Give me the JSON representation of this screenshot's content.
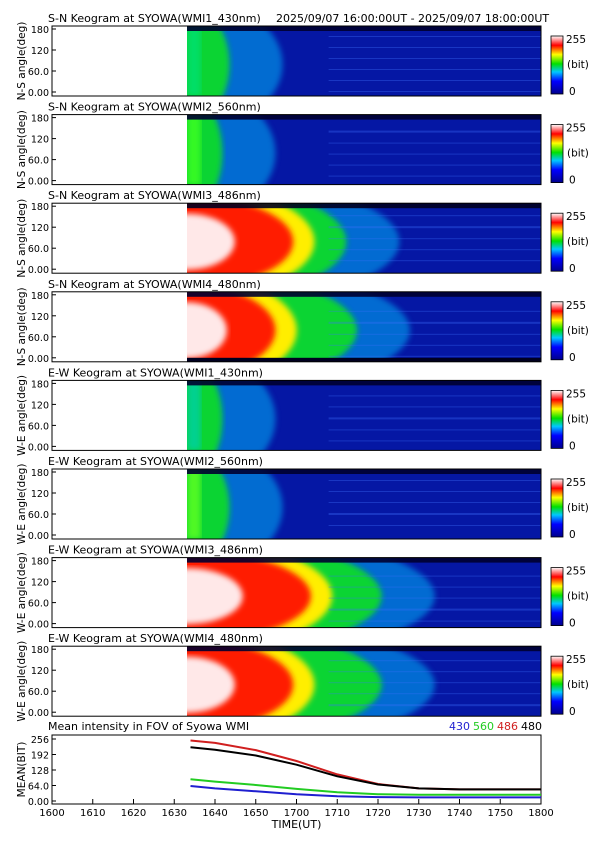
{
  "header": {
    "title_prefix": "S-N Keogram at SYOWA(WMI1_430nm)",
    "time_range": "2025/09/07 16:00:00UT - 2025/09/07 18:00:00UT"
  },
  "colorbar": {
    "max_label": "255",
    "unit_label": "(bit)",
    "min_label": "0"
  },
  "keogram_panels": [
    {
      "title": "S-N Keogram at SYOWA(WMI1_430nm)",
      "ylabel": "N-S angle(deg)",
      "ticks": [
        "180",
        "120",
        "60.0",
        "0.00"
      ]
    },
    {
      "title": "S-N Keogram at SYOWA(WMI2_560nm)",
      "ylabel": "N-S angle(deg)",
      "ticks": [
        "180",
        "120",
        "60.0",
        "0.00"
      ]
    },
    {
      "title": "S-N Keogram at SYOWA(WMI3_486nm)",
      "ylabel": "N-S angle(deg)",
      "ticks": [
        "180",
        "120",
        "60.0",
        "0.00"
      ]
    },
    {
      "title": "S-N Keogram at SYOWA(WMI4_480nm)",
      "ylabel": "N-S angle(deg)",
      "ticks": [
        "180",
        "120",
        "60.0",
        "0.00"
      ]
    },
    {
      "title": "E-W Keogram at SYOWA(WMI1_430nm)",
      "ylabel": "W-E angle(deg)",
      "ticks": [
        "180",
        "120",
        "60.0",
        "0.00"
      ]
    },
    {
      "title": "E-W Keogram at SYOWA(WMI2_560nm)",
      "ylabel": "W-E angle(deg)",
      "ticks": [
        "180",
        "120",
        "60.0",
        "0.00"
      ]
    },
    {
      "title": "E-W Keogram at SYOWA(WMI3_486nm)",
      "ylabel": "W-E angle(deg)",
      "ticks": [
        "180",
        "120",
        "60.0",
        "0.00"
      ]
    },
    {
      "title": "E-W Keogram at SYOWA(WMI4_480nm)",
      "ylabel": "W-E angle(deg)",
      "ticks": [
        "180",
        "120",
        "60.0",
        "0.00"
      ]
    }
  ],
  "mean_panel": {
    "title": "Mean intensity in FOV of Syowa WMI",
    "ylabel": "MEAN(BIT)",
    "yticks": [
      "256",
      "192",
      "128",
      "64.0",
      "0.00"
    ]
  },
  "x_axis": {
    "label": "TIME(UT)",
    "ticks": [
      "1600",
      "1610",
      "1620",
      "1630",
      "1640",
      "1650",
      "1700",
      "1710",
      "1720",
      "1730",
      "1740",
      "1750",
      "1800"
    ]
  },
  "chart_data": {
    "type": "line",
    "title": "Mean intensity in FOV of Syowa WMI",
    "xlabel": "TIME(UT)",
    "ylabel": "MEAN(BIT)",
    "ylim": [
      0,
      256
    ],
    "data_start": "16:34",
    "x": [
      "16:34",
      "16:40",
      "16:50",
      "17:00",
      "17:10",
      "17:20",
      "17:30",
      "17:40",
      "17:50",
      "18:00"
    ],
    "series": [
      {
        "name": "430",
        "color": "#1f1fd0",
        "values": [
          62,
          52,
          40,
          28,
          20,
          16,
          15,
          15,
          15,
          15
        ]
      },
      {
        "name": "560",
        "color": "#22cc22",
        "values": [
          90,
          80,
          66,
          50,
          36,
          28,
          26,
          26,
          26,
          26
        ]
      },
      {
        "name": "486",
        "color": "#d01f1f",
        "values": [
          250,
          240,
          210,
          165,
          110,
          70,
          52,
          48,
          48,
          48
        ]
      },
      {
        "name": "480",
        "color": "#000000",
        "values": [
          222,
          212,
          188,
          150,
          102,
          68,
          52,
          48,
          48,
          48
        ]
      }
    ],
    "grid": false,
    "legend": "top-right"
  }
}
